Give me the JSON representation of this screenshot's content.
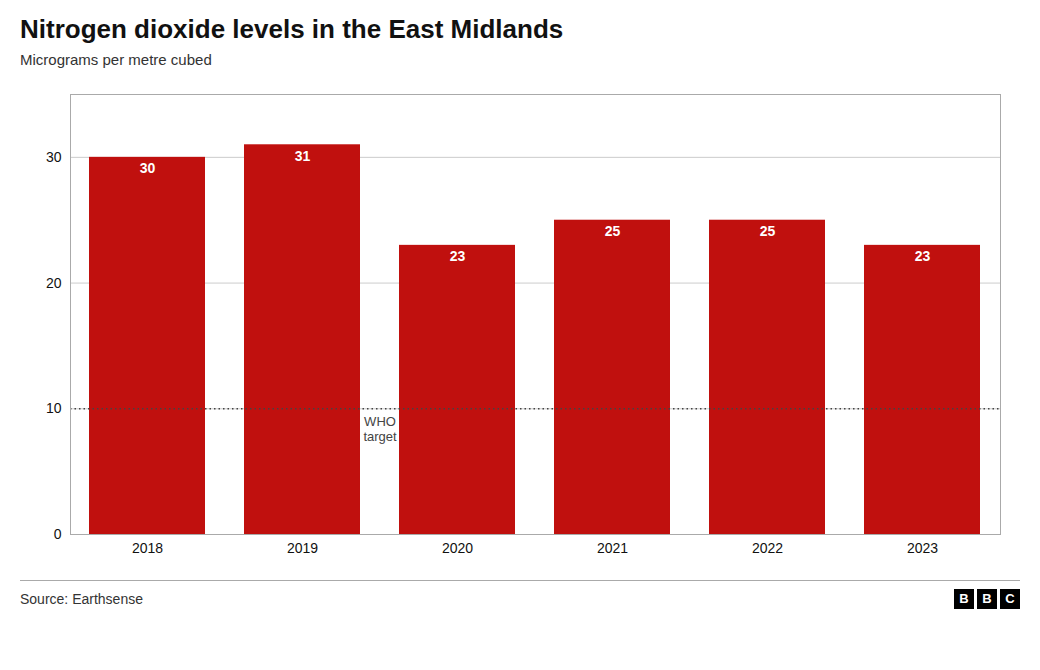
{
  "chart_data": {
    "type": "bar",
    "title": "Nitrogen dioxide levels in the East Midlands",
    "subtitle": "Micrograms per metre cubed",
    "source": "Source: Earthsense",
    "logo": "BBC",
    "categories": [
      "2018",
      "2019",
      "2020",
      "2021",
      "2022",
      "2023"
    ],
    "values": [
      30,
      31,
      23,
      25,
      25,
      23
    ],
    "color": "#c0100e",
    "ylim": [
      0,
      35
    ],
    "yticks": [
      0,
      10,
      20,
      30
    ],
    "grid": true,
    "data_labels": true,
    "annotations": [
      {
        "y": 10,
        "text": "WHO\ntarget",
        "line_style": "dotted"
      }
    ]
  }
}
